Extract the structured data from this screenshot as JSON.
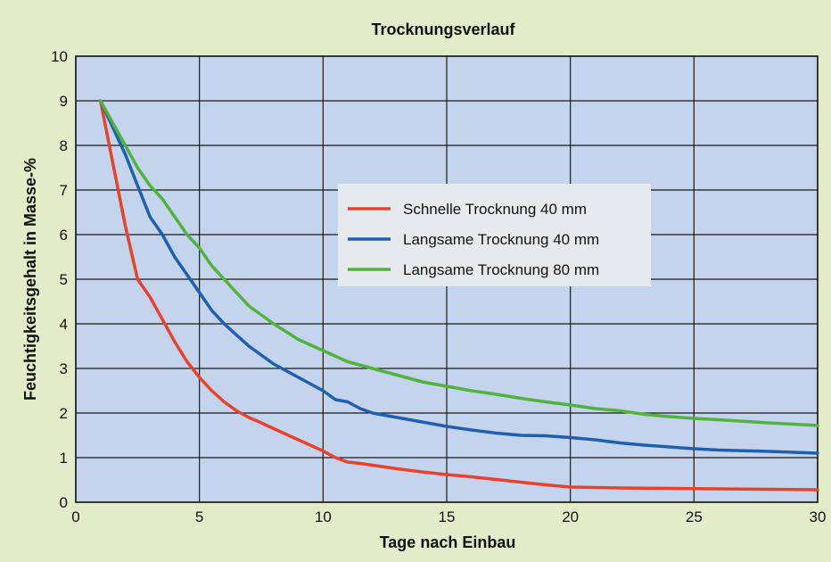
{
  "chart_data": {
    "type": "line",
    "title": "Trocknungsverlauf",
    "xlabel": "Tage nach Einbau",
    "ylabel": "Feuchtigkeitsgehalt in Masse-%",
    "xlim": [
      0,
      30
    ],
    "ylim": [
      0,
      10
    ],
    "xticks": [
      0,
      5,
      10,
      15,
      20,
      25,
      30
    ],
    "yticks": [
      0,
      1,
      2,
      3,
      4,
      5,
      6,
      7,
      8,
      9,
      10
    ],
    "grid": true,
    "legend_position": "upper-center",
    "colors": {
      "background": "#e2ecc8",
      "plot_area": "#c4d4ec",
      "grid": "#1a1a1a",
      "legend_box": "#e6eaee"
    },
    "series": [
      {
        "name": "Schnelle Trocknung 40 mm",
        "color": "#e8412c",
        "x": [
          1,
          1.5,
          2,
          2.5,
          3,
          3.5,
          4,
          4.5,
          5,
          5.5,
          6,
          6.5,
          7,
          7.5,
          8,
          9,
          10,
          10.5,
          11,
          11.5,
          12,
          13,
          14,
          15,
          16,
          17,
          18,
          19,
          20,
          22,
          24,
          26,
          28,
          30
        ],
        "y": [
          9.0,
          7.6,
          6.2,
          5.0,
          4.6,
          4.1,
          3.6,
          3.15,
          2.8,
          2.5,
          2.25,
          2.05,
          1.9,
          1.78,
          1.65,
          1.4,
          1.15,
          1.0,
          0.9,
          0.87,
          0.83,
          0.75,
          0.68,
          0.62,
          0.57,
          0.51,
          0.45,
          0.39,
          0.34,
          0.32,
          0.31,
          0.3,
          0.29,
          0.28
        ]
      },
      {
        "name": "Langsame Trocknung 40 mm",
        "color": "#1f5fae",
        "x": [
          1,
          1.5,
          2,
          2.5,
          3,
          3.5,
          4,
          4.5,
          5,
          5.5,
          6,
          7,
          8,
          9,
          10,
          10.5,
          11,
          11.5,
          12,
          13,
          14,
          15,
          16,
          17,
          18,
          19,
          20,
          21,
          22,
          23,
          24,
          25,
          26,
          28,
          30
        ],
        "y": [
          9.0,
          8.4,
          7.8,
          7.1,
          6.4,
          6.0,
          5.5,
          5.1,
          4.7,
          4.3,
          4.0,
          3.5,
          3.1,
          2.8,
          2.5,
          2.3,
          2.25,
          2.1,
          2.0,
          1.9,
          1.8,
          1.7,
          1.62,
          1.55,
          1.5,
          1.49,
          1.45,
          1.4,
          1.33,
          1.28,
          1.24,
          1.2,
          1.17,
          1.14,
          1.1
        ]
      },
      {
        "name": "Langsame Trocknung 80 mm",
        "color": "#52b23e",
        "x": [
          1,
          1.5,
          2,
          2.5,
          3,
          3.5,
          4,
          4.5,
          5,
          5.5,
          6,
          7,
          8,
          9,
          10,
          11,
          12,
          13,
          14,
          15,
          16,
          17,
          18,
          19,
          20,
          21,
          22,
          23,
          24,
          25,
          26,
          28,
          30
        ],
        "y": [
          9.0,
          8.5,
          8.0,
          7.5,
          7.1,
          6.8,
          6.4,
          6.0,
          5.7,
          5.3,
          5.0,
          4.4,
          4.0,
          3.65,
          3.4,
          3.15,
          3.0,
          2.85,
          2.7,
          2.6,
          2.5,
          2.42,
          2.33,
          2.25,
          2.18,
          2.1,
          2.05,
          1.97,
          1.92,
          1.88,
          1.85,
          1.78,
          1.72
        ]
      }
    ]
  }
}
